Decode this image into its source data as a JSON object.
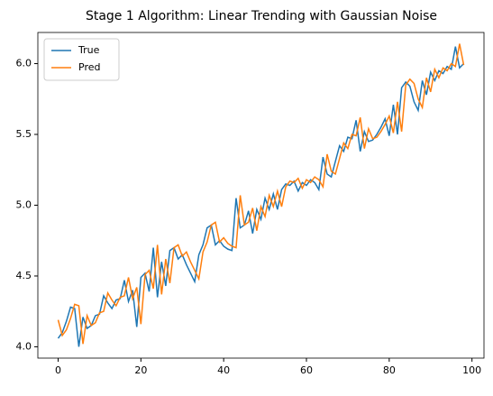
{
  "chart_data": {
    "type": "line",
    "title": "Stage 1 Algorithm: Linear Trending with Gaussian Noise",
    "x": [
      0,
      1,
      2,
      3,
      4,
      5,
      6,
      7,
      8,
      9,
      10,
      11,
      12,
      13,
      14,
      15,
      16,
      17,
      18,
      19,
      20,
      21,
      22,
      23,
      24,
      25,
      26,
      27,
      28,
      29,
      30,
      31,
      32,
      33,
      34,
      35,
      36,
      37,
      38,
      39,
      40,
      41,
      42,
      43,
      44,
      45,
      46,
      47,
      48,
      49,
      50,
      51,
      52,
      53,
      54,
      55,
      56,
      57,
      58,
      59,
      60,
      61,
      62,
      63,
      64,
      65,
      66,
      67,
      68,
      69,
      70,
      71,
      72,
      73,
      74,
      75,
      76,
      77,
      78,
      79,
      80,
      81,
      82,
      83,
      84,
      85,
      86,
      87,
      88,
      89,
      90,
      91,
      92,
      93,
      94,
      95,
      96,
      97,
      98
    ],
    "series": [
      {
        "name": "True",
        "color": "#1f77b4",
        "values": [
          4.06,
          4.1,
          4.18,
          4.28,
          4.27,
          4.0,
          4.21,
          4.13,
          4.15,
          4.22,
          4.23,
          4.36,
          4.31,
          4.27,
          4.33,
          4.34,
          4.47,
          4.32,
          4.4,
          4.14,
          4.49,
          4.52,
          4.39,
          4.7,
          4.35,
          4.6,
          4.43,
          4.68,
          4.7,
          4.62,
          4.65,
          4.58,
          4.52,
          4.46,
          4.65,
          4.72,
          4.84,
          4.86,
          4.72,
          4.75,
          4.71,
          4.69,
          4.68,
          5.05,
          4.84,
          4.86,
          4.96,
          4.8,
          4.97,
          4.9,
          5.05,
          4.97,
          5.08,
          4.97,
          5.11,
          5.15,
          5.14,
          5.17,
          5.1,
          5.16,
          5.14,
          5.18,
          5.16,
          5.11,
          5.34,
          5.22,
          5.2,
          5.31,
          5.42,
          5.38,
          5.48,
          5.47,
          5.6,
          5.38,
          5.52,
          5.45,
          5.46,
          5.5,
          5.55,
          5.61,
          5.49,
          5.71,
          5.5,
          5.83,
          5.87,
          5.84,
          5.73,
          5.67,
          5.88,
          5.78,
          5.94,
          5.88,
          5.95,
          5.93,
          5.98,
          5.96,
          6.12,
          5.97,
          6.0
        ]
      },
      {
        "name": "Pred",
        "color": "#ff7f0e",
        "values": [
          4.19,
          4.08,
          4.12,
          4.2,
          4.3,
          4.29,
          4.02,
          4.22,
          4.15,
          4.17,
          4.24,
          4.25,
          4.38,
          4.33,
          4.29,
          4.35,
          4.36,
          4.49,
          4.34,
          4.42,
          4.16,
          4.51,
          4.54,
          4.41,
          4.72,
          4.37,
          4.62,
          4.45,
          4.7,
          4.72,
          4.64,
          4.67,
          4.6,
          4.54,
          4.48,
          4.67,
          4.74,
          4.86,
          4.88,
          4.74,
          4.77,
          4.73,
          4.71,
          4.7,
          5.07,
          4.86,
          4.88,
          4.98,
          4.82,
          4.99,
          4.92,
          5.07,
          4.99,
          5.1,
          4.99,
          5.13,
          5.17,
          5.16,
          5.19,
          5.12,
          5.18,
          5.16,
          5.2,
          5.18,
          5.13,
          5.36,
          5.24,
          5.22,
          5.33,
          5.44,
          5.4,
          5.5,
          5.49,
          5.62,
          5.4,
          5.54,
          5.47,
          5.48,
          5.52,
          5.57,
          5.63,
          5.51,
          5.73,
          5.52,
          5.85,
          5.89,
          5.86,
          5.75,
          5.69,
          5.9,
          5.8,
          5.96,
          5.9,
          5.97,
          5.95,
          6.0,
          5.98,
          6.14,
          5.99
        ]
      }
    ],
    "xlim": [
      -4.9,
      102.9
    ],
    "xticks": [
      0,
      20,
      40,
      60,
      80,
      100
    ],
    "ylim": [
      3.92,
      6.22
    ],
    "yticks": [
      {
        "value": 4,
        "label": "4.0"
      },
      4.5,
      {
        "value": 5,
        "label": "5.0"
      },
      5.5,
      {
        "value": 6,
        "label": "6.0"
      }
    ],
    "legend": "upper left"
  }
}
